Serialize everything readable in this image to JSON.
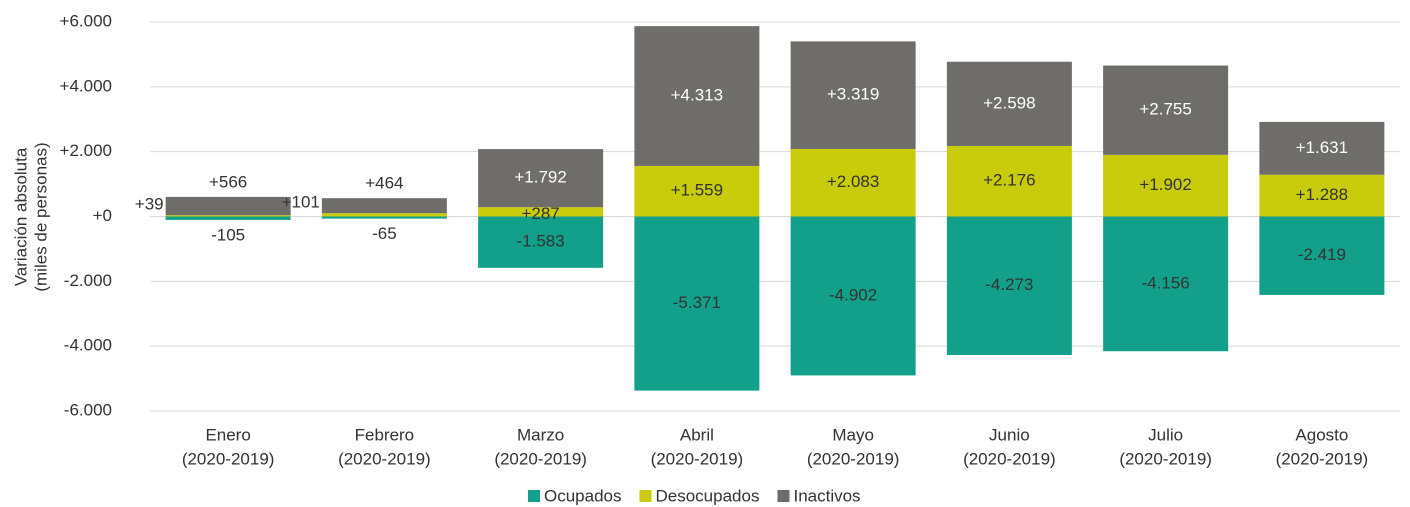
{
  "chart_data": {
    "type": "stacked_bar",
    "y_label": [
      "Variación absoluta",
      "(miles de personas)"
    ],
    "categories": [
      [
        "Enero",
        "(2020-2019)"
      ],
      [
        "Febrero",
        "(2020-2019)"
      ],
      [
        "Marzo",
        "(2020-2019)"
      ],
      [
        "Abril",
        "(2020-2019)"
      ],
      [
        "Mayo",
        "(2020-2019)"
      ],
      [
        "Junio",
        "(2020-2019)"
      ],
      [
        "Julio",
        "(2020-2019)"
      ],
      [
        "Agosto",
        "(2020-2019)"
      ]
    ],
    "series": [
      {
        "name": "Ocupados",
        "color": "#12a08a",
        "values": [
          -105,
          -65,
          -1583,
          -5371,
          -4902,
          -4273,
          -4156,
          -2419
        ],
        "value_labels": [
          "-105",
          "-65",
          "-1.583",
          "-5.371",
          "-4.902",
          "-4.273",
          "-4.156",
          "-2.419"
        ]
      },
      {
        "name": "Desocupados",
        "color": "#c9cc0b",
        "values": [
          39,
          101,
          287,
          1559,
          2083,
          2176,
          1902,
          1288
        ],
        "value_labels": [
          "+39",
          "+101",
          "+287",
          "+1.559",
          "+2.083",
          "+2.176",
          "+1.902",
          "+1.288"
        ]
      },
      {
        "name": "Inactivos",
        "color": "#6e6d6a",
        "values": [
          566,
          464,
          1792,
          4313,
          3319,
          2598,
          2755,
          1631
        ],
        "value_labels": [
          "+566",
          "+464",
          "+1.792",
          "+4.313",
          "+3.319",
          "+2.598",
          "+2.755",
          "+1.631"
        ]
      }
    ],
    "ylim": [
      -6000,
      6000
    ],
    "yticks": [
      {
        "value": -6000,
        "label": "-6.000"
      },
      {
        "value": -4000,
        "label": "-4.000"
      },
      {
        "value": -2000,
        "label": "-2.000"
      },
      {
        "value": 0,
        "label": "+0"
      },
      {
        "value": 2000,
        "label": "+2.000"
      },
      {
        "value": 4000,
        "label": "+4.000"
      },
      {
        "value": 6000,
        "label": "+6.000"
      }
    ],
    "grid": true,
    "legend": "bottom"
  }
}
